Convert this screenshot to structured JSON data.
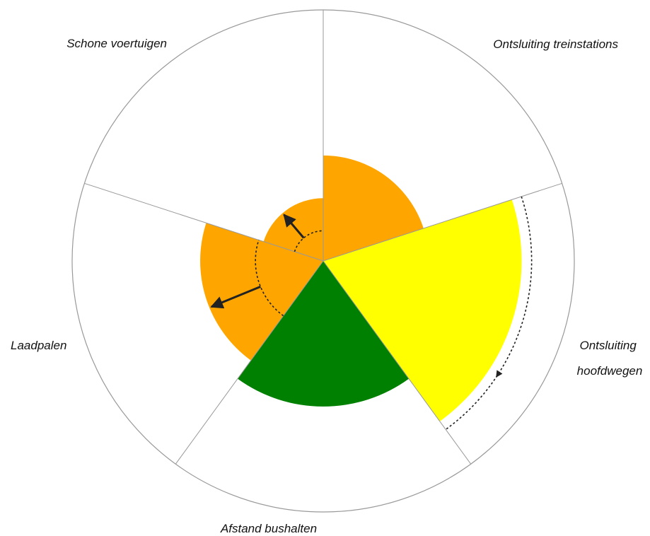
{
  "chart_data": {
    "type": "polar-area",
    "title": "",
    "max_value": 100,
    "grid": false,
    "categories": [
      {
        "label": "Ontsluiting treinstations",
        "value": 42,
        "previous": null,
        "color": "#FFA500"
      },
      {
        "label": "Ontsluiting hoofdwegen",
        "value": 79,
        "previous": 83,
        "color": "#FFFF00"
      },
      {
        "label": "Afstand bushalten",
        "value": 58,
        "previous": null,
        "color": "#008000"
      },
      {
        "label": "Laadpalen",
        "value": 49,
        "previous": 27,
        "color": "#FFA500"
      },
      {
        "label": "Schone voertuigen",
        "value": 25,
        "previous": 12,
        "color": "#FFA500"
      }
    ],
    "colors": {
      "orange": "#FFA500",
      "yellow": "#FFFF00",
      "green": "#008000",
      "outline": "#999999",
      "arrow": "#222222"
    }
  }
}
